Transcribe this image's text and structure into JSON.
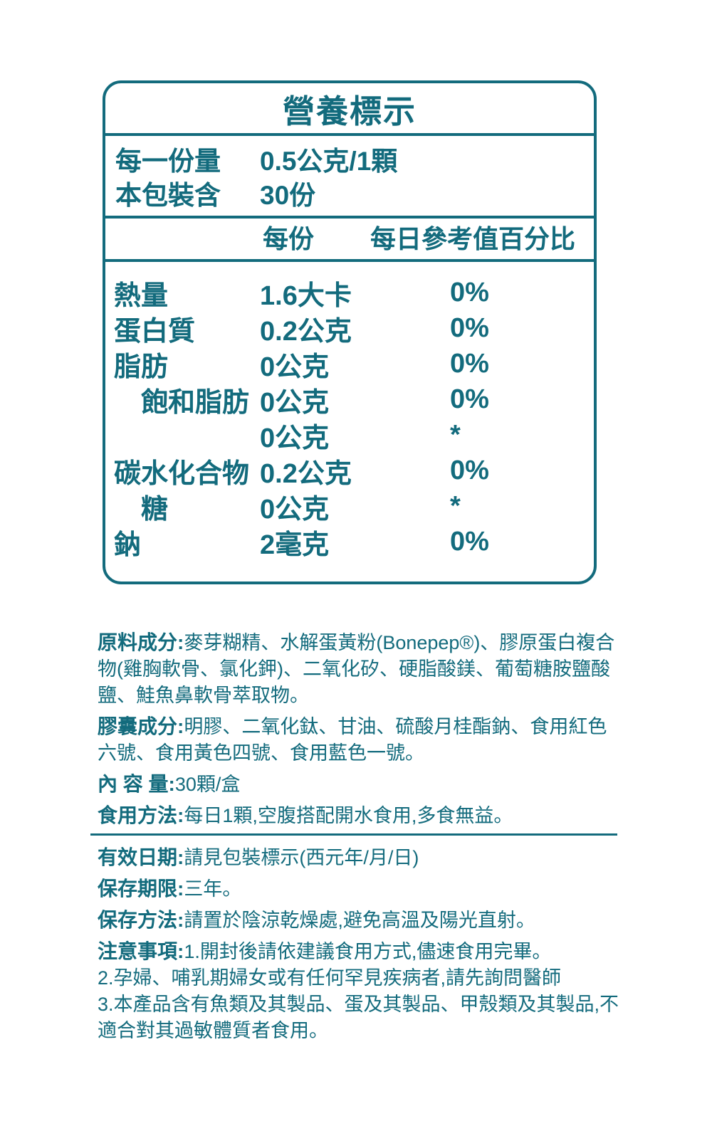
{
  "colors": {
    "accent_teal": "#136b7d",
    "background": "#ffffff"
  },
  "box": {
    "title": "營養標示",
    "serving_size": {
      "label": "每一份量",
      "value": "0.5公克/1顆"
    },
    "servings_per_package": {
      "label": "本包裝含",
      "value": "30份"
    },
    "columns": {
      "per_serving": "每份",
      "daily_value": "每日參考值百分比"
    },
    "rows": [
      {
        "label": "熱量",
        "amount": "1.6大卡",
        "dv": "0%"
      },
      {
        "label": "蛋白質",
        "amount": "0.2公克",
        "dv": "0%"
      },
      {
        "label": "脂肪",
        "amount": "0公克",
        "dv": "0%"
      },
      {
        "label": "飽和脂肪",
        "amount": "0公克",
        "dv": "0%"
      },
      {
        "label": "",
        "amount": "0公克",
        "dv": "*"
      },
      {
        "label": "碳水化合物",
        "amount": "0.2公克",
        "dv": "0%"
      },
      {
        "label": "糖",
        "amount": "0公克",
        "dv": "*"
      },
      {
        "label": "鈉",
        "amount": "2毫克",
        "dv": "0%"
      }
    ]
  },
  "details": {
    "ingredients": {
      "label": "原料成分:",
      "text": "麥芽糊精、水解蛋黃粉(Bonepep®)、膠原蛋白複合物(雞胸軟骨、氯化鉀)、二氧化矽、硬脂酸鎂、葡萄糖胺鹽酸鹽、鮭魚鼻軟骨萃取物。"
    },
    "capsule": {
      "label": "膠囊成分:",
      "text": "明膠、二氧化鈦、甘油、硫酸月桂酯鈉、食用紅色六號、食用黃色四號、食用藍色一號。"
    },
    "content_amount": {
      "label": "內 容 量:",
      "text": "30顆/盒"
    },
    "usage": {
      "label": "食用方法:",
      "text": "每日1顆,空腹搭配開水食用,多食無益。"
    },
    "expiry": {
      "label": "有效日期:",
      "text": "請見包裝標示(西元年/月/日)"
    },
    "shelf_life": {
      "label": "保存期限:",
      "text": "三年。"
    },
    "storage": {
      "label": "保存方法:",
      "text": "請置於陰涼乾燥處,避免高溫及陽光直射。"
    },
    "precautions": {
      "label": "注意事項:",
      "notes": [
        "1.開封後請依建議食用方式,儘速食用完畢。",
        "2.孕婦、哺乳期婦女或有任何罕見疾病者,請先詢問醫師",
        "3.本產品含有魚類及其製品、蛋及其製品、甲殼類及其製品,不適合對其過敏體質者食用。"
      ]
    }
  }
}
